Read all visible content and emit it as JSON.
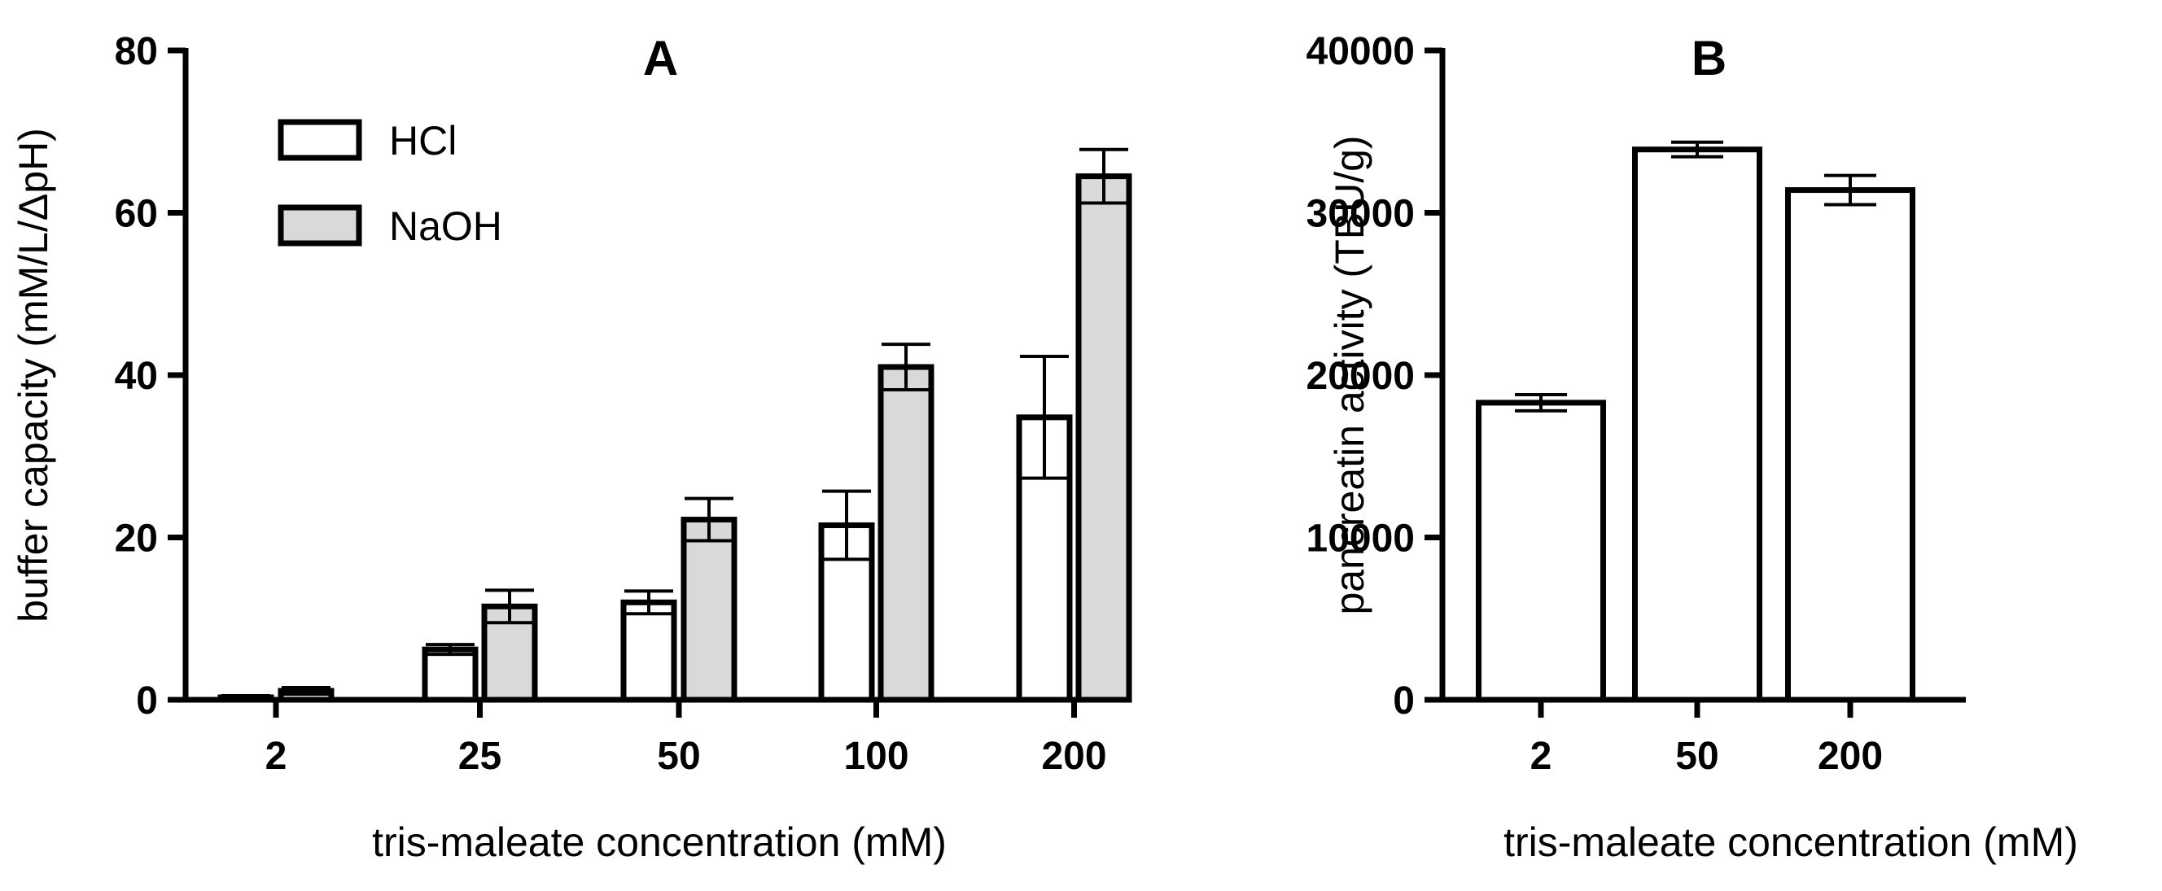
{
  "chart_data": [
    {
      "type": "bar",
      "title": "A",
      "xlabel": "tris-maleate concentration (mM)",
      "ylabel": "buffer capacity (mM/L/ΔpH)",
      "categories": [
        "2",
        "25",
        "50",
        "100",
        "200"
      ],
      "ylim": [
        0,
        80
      ],
      "yticks": [
        "0",
        "20",
        "40",
        "60",
        "80"
      ],
      "series": [
        {
          "name": "HCl",
          "color": "#ffffff",
          "values": [
            0.3,
            6.2,
            12.0,
            21.5,
            34.8
          ],
          "errors": [
            0.2,
            0.6,
            1.4,
            4.2,
            7.5
          ]
        },
        {
          "name": "NaOH",
          "color": "#d9d9d9",
          "values": [
            1.1,
            11.5,
            22.2,
            41.0,
            64.5
          ],
          "errors": [
            0.4,
            2.0,
            2.6,
            2.8,
            3.3
          ]
        }
      ],
      "legend": {
        "position": "top-left",
        "entries": [
          "HCl",
          "NaOH"
        ]
      }
    },
    {
      "type": "bar",
      "title": "B",
      "xlabel": "tris-maleate concentration (mM)",
      "ylabel": "pancreatin activity (TBU/g)",
      "categories": [
        "2",
        "50",
        "200"
      ],
      "ylim": [
        0,
        40000
      ],
      "yticks": [
        "0",
        "10000",
        "20000",
        "30000",
        "40000"
      ],
      "series": [
        {
          "name": "pancreatin activity",
          "color": "#ffffff",
          "values": [
            18300,
            33900,
            31400
          ],
          "errors": [
            500,
            450,
            900
          ]
        }
      ]
    }
  ]
}
